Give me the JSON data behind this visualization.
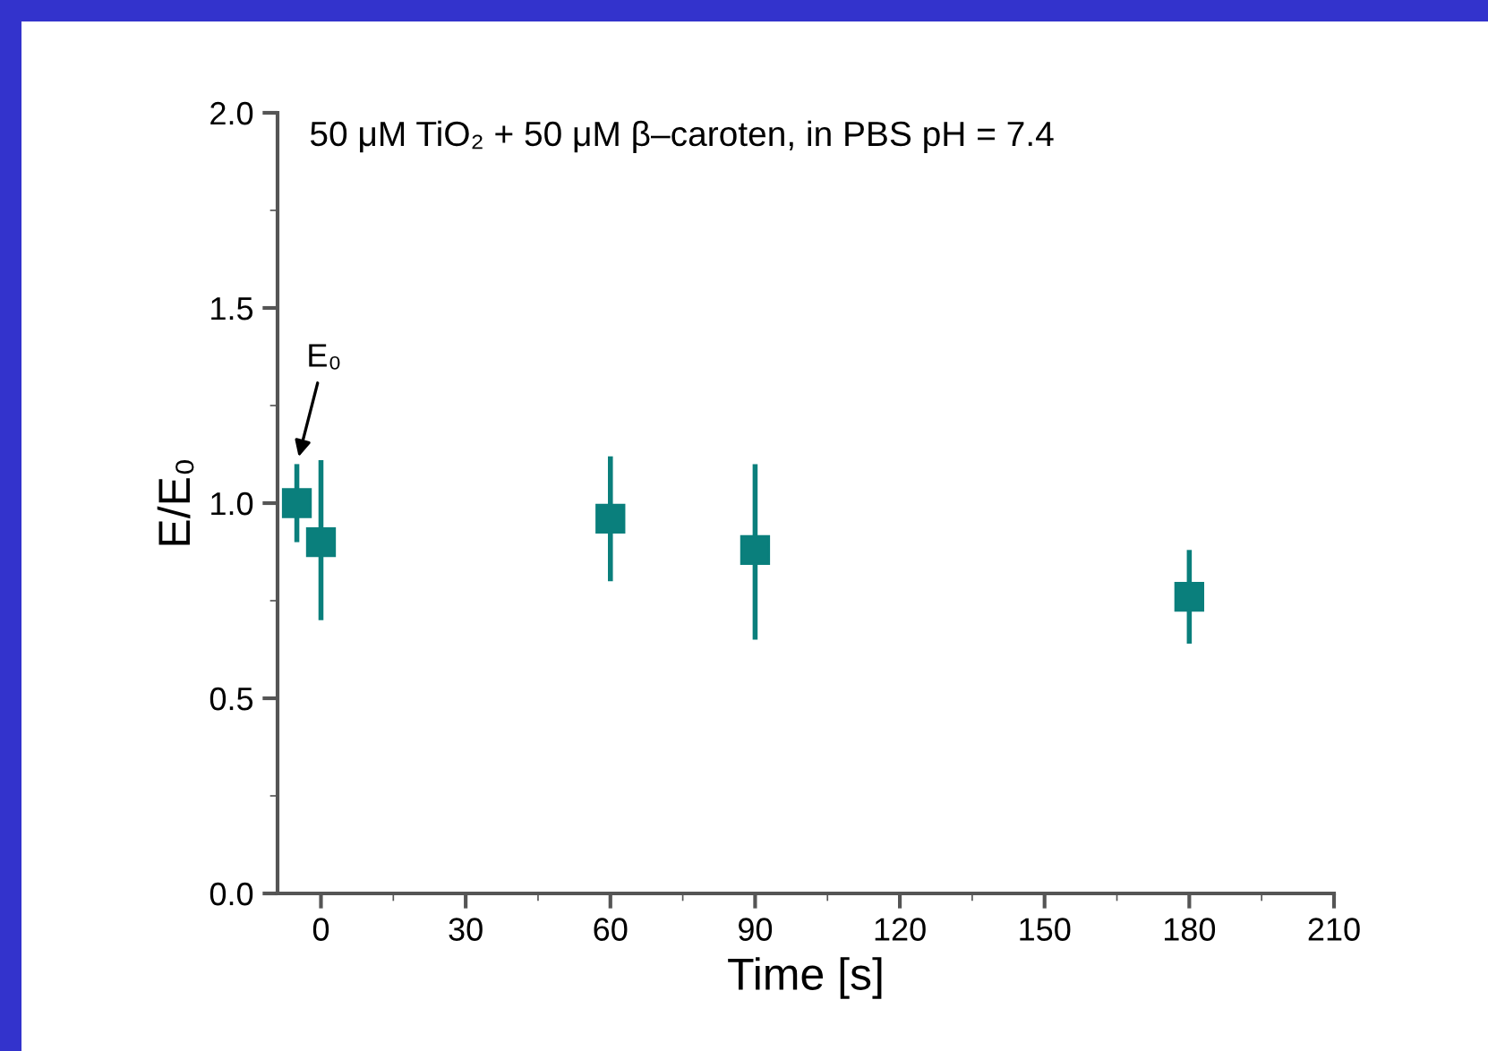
{
  "chart_data": {
    "type": "scatter",
    "xlabel": "Time [s]",
    "ylabel": "E/E₀",
    "x": [
      -5,
      0,
      60,
      90,
      180
    ],
    "series": [
      {
        "color": "#0a7f7c",
        "values": [
          1.0,
          0.9,
          0.96,
          0.88,
          0.76
        ],
        "errors": [
          [
            0.9,
            1.1
          ],
          [
            0.7,
            1.11
          ],
          [
            0.8,
            1.12
          ],
          [
            0.65,
            1.1
          ],
          [
            0.64,
            0.88
          ]
        ]
      }
    ],
    "xlim": [
      -9,
      210
    ],
    "xticks": [
      0,
      30,
      60,
      90,
      120,
      150,
      180,
      210
    ],
    "ylim": [
      0,
      2.0
    ],
    "yticks": [
      {
        "value": 0,
        "label": "0.0"
      },
      {
        "value": 0.5,
        "label": "0.5"
      },
      {
        "value": 1.0,
        "label": "1.0"
      },
      {
        "value": 1.5,
        "label": "1.5"
      },
      {
        "value": 2.0,
        "label": "2.0"
      }
    ],
    "marker": "square",
    "grid": false,
    "legend": false,
    "annotations": [
      "50 μM TiO₂ + 50 μM β–caroten, in PBS pH = 7.4",
      "E₀"
    ]
  }
}
